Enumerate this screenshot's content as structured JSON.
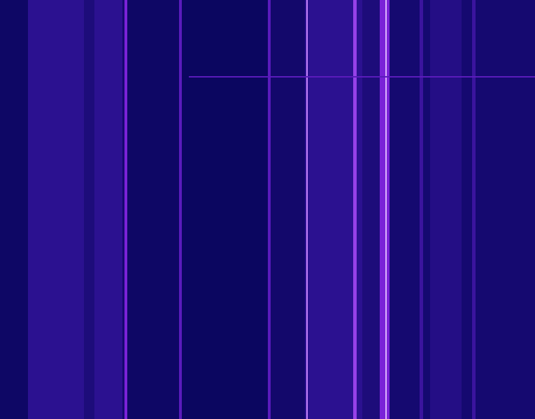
{
  "chart_data": {
    "type": "heatmap",
    "xlim": [
      0,
      765
    ],
    "ylim": [
      0,
      600
    ],
    "tick_labels": false,
    "grid": false,
    "value_range": [
      0,
      10
    ],
    "bands": [
      {
        "start": 0,
        "end": 40,
        "value": 0.5
      },
      {
        "start": 40,
        "end": 120,
        "value": 2.5
      },
      {
        "start": 120,
        "end": 135,
        "value": 1.5
      },
      {
        "start": 135,
        "end": 175,
        "value": 2.5
      },
      {
        "start": 175,
        "end": 178,
        "value": 1
      },
      {
        "start": 178,
        "end": 182,
        "value": 5
      },
      {
        "start": 182,
        "end": 256,
        "value": 0.5
      },
      {
        "start": 256,
        "end": 260,
        "value": 4
      },
      {
        "start": 260,
        "end": 383,
        "value": 0.3
      },
      {
        "start": 383,
        "end": 387,
        "value": 4
      },
      {
        "start": 387,
        "end": 436,
        "value": 0.8
      },
      {
        "start": 436,
        "end": 438,
        "value": 2.5
      },
      {
        "start": 438,
        "end": 440,
        "value": 8
      },
      {
        "start": 440,
        "end": 505,
        "value": 2.5
      },
      {
        "start": 505,
        "end": 510,
        "value": 6
      },
      {
        "start": 510,
        "end": 518,
        "value": 2.5
      },
      {
        "start": 518,
        "end": 543,
        "value": 1.5
      },
      {
        "start": 543,
        "end": 551,
        "value": 5
      },
      {
        "start": 551,
        "end": 553,
        "value": 9
      },
      {
        "start": 553,
        "end": 557,
        "value": 5
      },
      {
        "start": 557,
        "end": 600,
        "value": 1
      },
      {
        "start": 600,
        "end": 605,
        "value": 3
      },
      {
        "start": 605,
        "end": 615,
        "value": 1
      },
      {
        "start": 615,
        "end": 660,
        "value": 2
      },
      {
        "start": 660,
        "end": 675,
        "value": 1
      },
      {
        "start": 675,
        "end": 680,
        "value": 3
      },
      {
        "start": 680,
        "end": 765,
        "value": 1
      }
    ],
    "hlines": [
      {
        "y": 490,
        "start": 270,
        "end": 765,
        "value": 4
      }
    ]
  }
}
